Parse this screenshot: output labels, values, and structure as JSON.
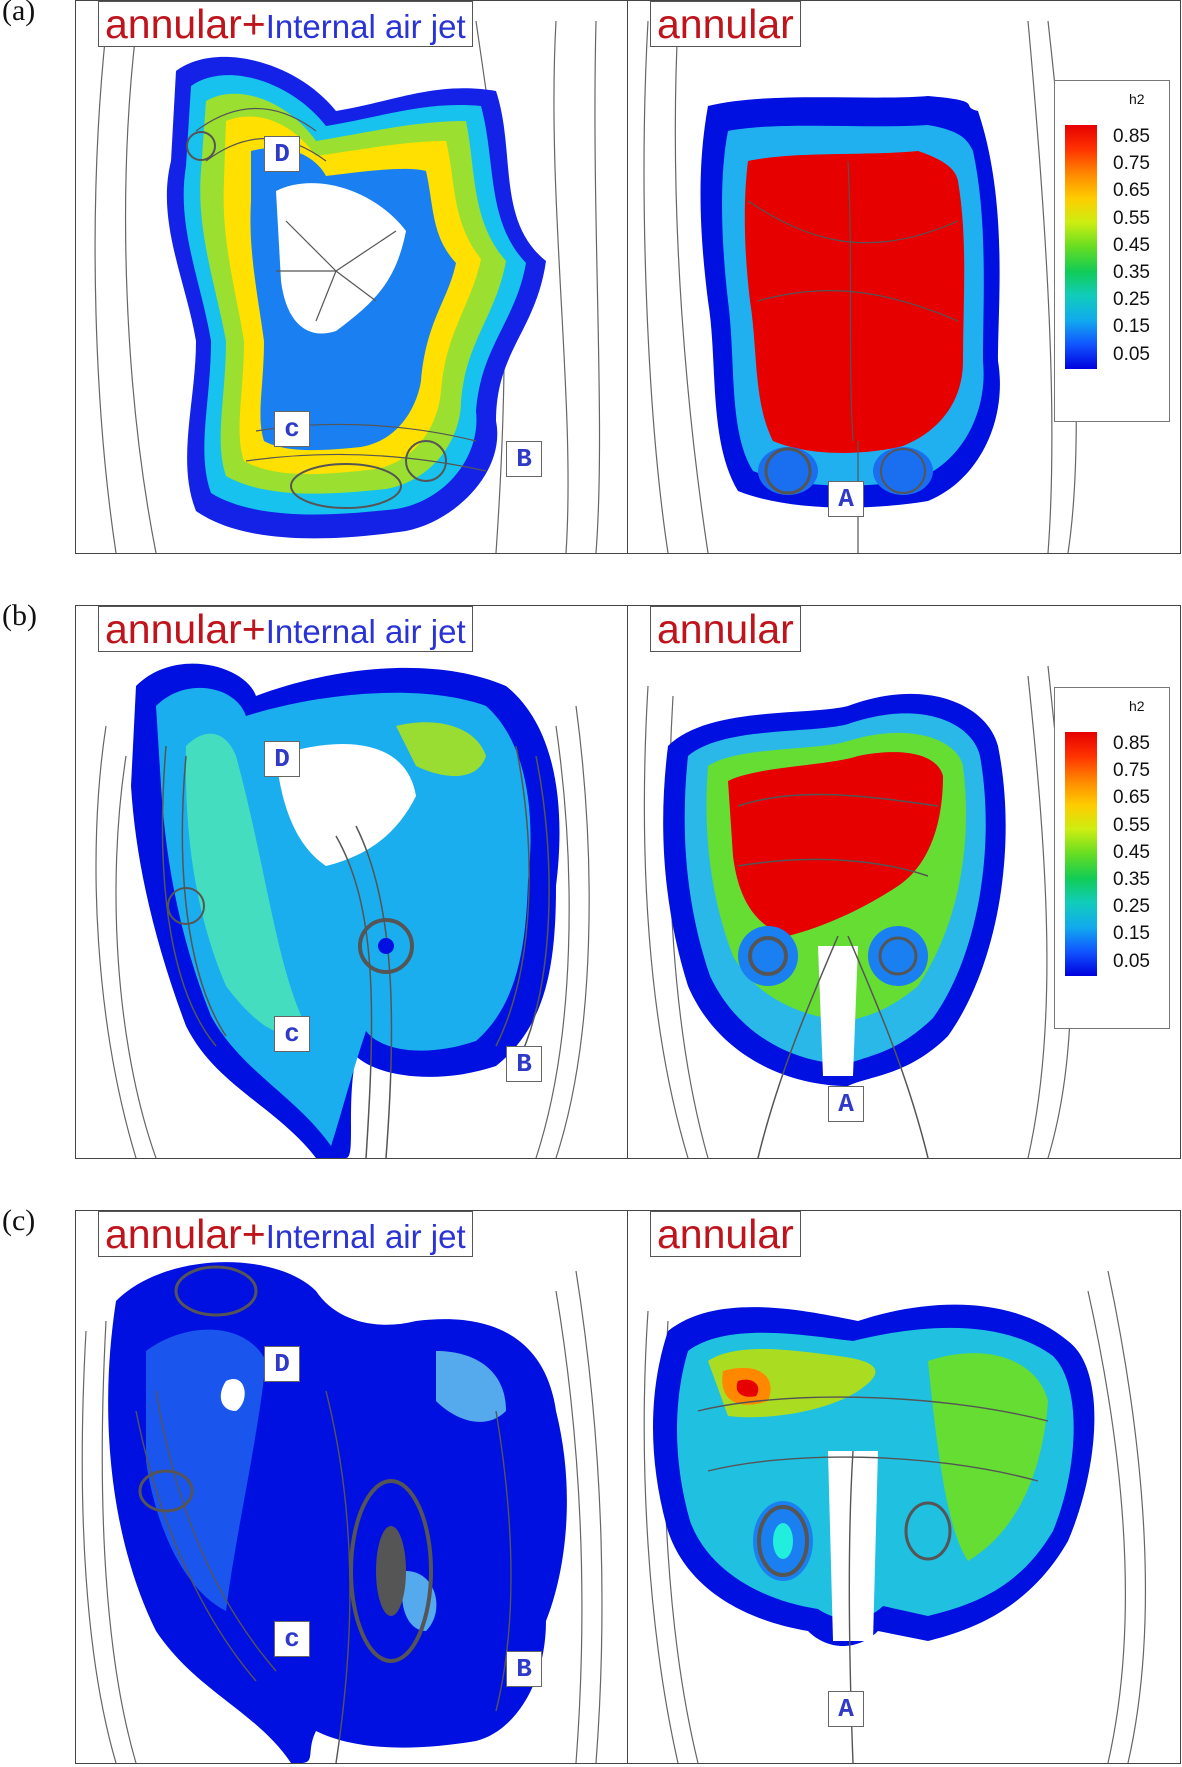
{
  "rows": [
    {
      "label": "(a)"
    },
    {
      "label": "(b)"
    },
    {
      "label": "(c)"
    }
  ],
  "left_panel": {
    "title_part1": "annular+",
    "title_part2": "Internal air jet",
    "markers": {
      "d": "D",
      "c": "c",
      "b": "B"
    }
  },
  "right_panel": {
    "title": "annular",
    "marker": "A"
  },
  "legend": {
    "title": "h2",
    "ticks": [
      "0.85",
      "0.75",
      "0.65",
      "0.55",
      "0.45",
      "0.35",
      "0.25",
      "0.15",
      "0.05"
    ]
  },
  "colors": {
    "title_red": "#c0141c",
    "title_blue": "#2a33d6",
    "marker_text": "#2f3ac9",
    "streamline": "#555555",
    "contour_low": "#0010e0",
    "contour_high": "#e60000"
  }
}
